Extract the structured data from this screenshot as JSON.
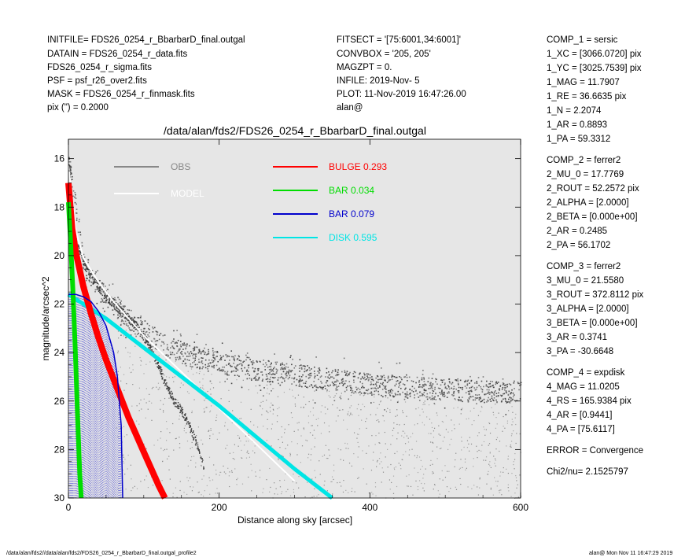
{
  "header": {
    "left": [
      "INITFILE= FDS26_0254_r_BbarbarD_final.outgal",
      "DATAIN  = FDS26_0254_r_data.fits",
      "FDS26_0254_r_sigma.fits",
      "PSF     = psf_r26_over2.fits",
      "MASK    = FDS26_0254_r_finmask.fits",
      "pix (\") =  0.2000"
    ],
    "middle": [
      "FITSECT = '[75:6001,34:6001]'",
      "CONVBOX = '205, 205'",
      "MAGZPT  =                0.",
      "INFILE: 2019-Nov- 5",
      "PLOT: 11-Nov-2019 16:47:26.00",
      "alan@"
    ]
  },
  "components": [
    "COMP_1  = sersic",
    "1_XC    = [3066.0720] pix",
    "1_YC    = [3025.7539] pix",
    "1_MAG   = 11.7907",
    "1_RE    = 36.6635 pix",
    "1_N     = 2.2074",
    "1_AR    = 0.8893",
    "1_PA    = 59.3312",
    "",
    "COMP_2  = ferrer2",
    "2_MU_0  = 17.7769",
    "2_ROUT  = 52.2572 pix",
    "2_ALPHA = [2.0000]",
    "2_BETA  = [0.000e+00]",
    "2_AR    = 0.2485",
    "2_PA    = 56.1702",
    "",
    "COMP_3  = ferrer2",
    "3_MU_0  = 21.5580",
    "3_ROUT  = 372.8112 pix",
    "3_ALPHA = [2.0000]",
    "3_BETA  = [0.000e+00]",
    "3_AR    = 0.3741",
    "3_PA    = -30.6648",
    "",
    "COMP_4  = expdisk",
    "4_MAG   = 11.0205",
    "4_RS    = 165.9384 pix",
    "4_AR    = [0.9441]",
    "4_PA    = [75.6117]",
    "",
    "ERROR   = Convergence",
    "",
    "Chi2/nu=      2.1525797"
  ],
  "footer": {
    "left": "/data/alan/fds2//data/alan/fds2/FDS26_0254_r_BbarbarD_final.outgal_profile2",
    "right": "alan@  Mon Nov 11 16:47:29 2019"
  },
  "chart_data": {
    "type": "scatter",
    "title": "/data/alan/fds2/FDS26_0254_r_BbarbarD_final.outgal",
    "xlabel": "Distance along sky [arcsec]",
    "ylabel": "magnitude/arcsec^2",
    "xlim": [
      0,
      600
    ],
    "ylim": [
      30,
      15.2
    ],
    "y_inverted": true,
    "xticks": [
      0,
      200,
      400,
      600
    ],
    "yticks": [
      16,
      18,
      20,
      22,
      24,
      26,
      28,
      30
    ],
    "background": "#e6e6e6",
    "legend": [
      {
        "label": "OBS",
        "color": "#888888"
      },
      {
        "label": "MODEL",
        "color": "#ffffff"
      },
      {
        "label": "BULGE",
        "value": "0.293",
        "color": "#ff0000"
      },
      {
        "label": "BAR",
        "value": "0.034",
        "color": "#00dd00"
      },
      {
        "label": "BAR",
        "value": "0.079",
        "color": "#0000cc"
      },
      {
        "label": "DISK",
        "value": "0.595",
        "color": "#00e5e5"
      }
    ],
    "series": [
      {
        "name": "OBS",
        "color": "#555555",
        "points": [
          [
            0,
            16.0
          ],
          [
            5,
            18.2
          ],
          [
            10,
            19.3
          ],
          [
            20,
            20.3
          ],
          [
            30,
            20.9
          ],
          [
            40,
            21.3
          ],
          [
            50,
            21.7
          ],
          [
            60,
            22.0
          ],
          [
            70,
            22.3
          ],
          [
            80,
            22.6
          ],
          [
            90,
            22.9
          ],
          [
            100,
            23.4
          ],
          [
            110,
            23.9
          ],
          [
            120,
            24.6
          ],
          [
            130,
            25.4
          ],
          [
            140,
            26.0
          ],
          [
            150,
            26.4
          ],
          [
            160,
            27.0
          ],
          [
            170,
            27.8
          ],
          [
            180,
            28.8
          ],
          [
            200,
            24.0
          ],
          [
            250,
            24.6
          ],
          [
            300,
            24.9
          ],
          [
            350,
            25.1
          ],
          [
            400,
            25.3
          ],
          [
            450,
            25.4
          ],
          [
            500,
            25.5
          ],
          [
            550,
            25.6
          ],
          [
            600,
            25.6
          ]
        ]
      },
      {
        "name": "MODEL",
        "color": "#ffffff",
        "points": [
          [
            0,
            16.3
          ],
          [
            10,
            19.0
          ],
          [
            20,
            20.1
          ],
          [
            40,
            21.1
          ],
          [
            60,
            21.9
          ],
          [
            80,
            22.6
          ],
          [
            100,
            23.3
          ],
          [
            150,
            24.8
          ],
          [
            200,
            26.3
          ],
          [
            250,
            27.8
          ],
          [
            300,
            29.3
          ]
        ]
      },
      {
        "name": "BULGE",
        "color": "#ff0000",
        "points": [
          [
            0,
            17.0
          ],
          [
            5,
            18.9
          ],
          [
            10,
            19.9
          ],
          [
            20,
            21.3
          ],
          [
            30,
            22.4
          ],
          [
            40,
            23.4
          ],
          [
            50,
            24.3
          ],
          [
            60,
            25.1
          ],
          [
            70,
            25.9
          ],
          [
            80,
            26.7
          ],
          [
            90,
            27.4
          ],
          [
            100,
            28.1
          ],
          [
            110,
            28.8
          ],
          [
            120,
            29.5
          ],
          [
            128,
            30.0
          ]
        ]
      },
      {
        "name": "BAR",
        "color": "#00dd00",
        "points": [
          [
            0,
            17.8
          ],
          [
            3,
            19.5
          ],
          [
            6,
            21.5
          ],
          [
            9,
            23.8
          ],
          [
            12,
            26.5
          ],
          [
            15,
            29.0
          ],
          [
            17,
            30.0
          ]
        ]
      },
      {
        "name": "BAR",
        "color": "#0000cc",
        "points": [
          [
            0,
            21.6
          ],
          [
            10,
            21.6
          ],
          [
            20,
            21.7
          ],
          [
            30,
            21.9
          ],
          [
            40,
            22.3
          ],
          [
            50,
            22.9
          ],
          [
            60,
            24.0
          ],
          [
            65,
            25.0
          ],
          [
            70,
            27.0
          ],
          [
            72,
            30.0
          ]
        ]
      },
      {
        "name": "DISK",
        "color": "#00e5e5",
        "points": [
          [
            0,
            21.6
          ],
          [
            50,
            22.6
          ],
          [
            100,
            23.8
          ],
          [
            150,
            25.0
          ],
          [
            200,
            26.2
          ],
          [
            250,
            27.5
          ],
          [
            300,
            28.8
          ],
          [
            350,
            30.0
          ]
        ]
      }
    ]
  }
}
